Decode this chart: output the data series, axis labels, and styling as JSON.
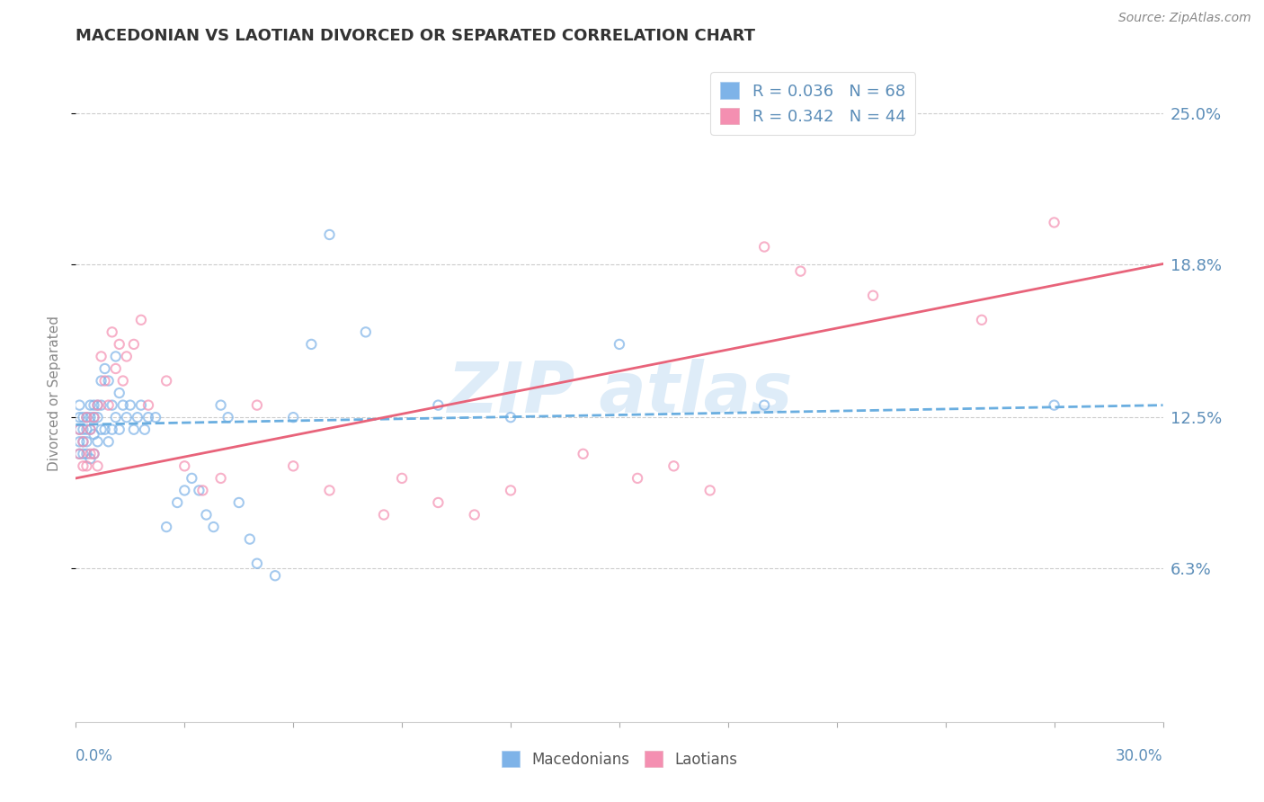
{
  "title": "MACEDONIAN VS LAOTIAN DIVORCED OR SEPARATED CORRELATION CHART",
  "source": "Source: ZipAtlas.com",
  "ylabel": "Divorced or Separated",
  "yticks": [
    0.063,
    0.125,
    0.188,
    0.25
  ],
  "ytick_labels": [
    "6.3%",
    "12.5%",
    "18.8%",
    "25.0%"
  ],
  "xmin": 0.0,
  "xmax": 0.3,
  "ymin": 0.0,
  "ymax": 0.27,
  "macedonian_R": 0.036,
  "macedonian_N": 68,
  "laotian_R": 0.342,
  "laotian_N": 44,
  "macedonian_color": "#7EB3E8",
  "laotian_color": "#F48FB1",
  "macedonian_trend_color": "#6AAEE0",
  "laotian_trend_color": "#E8637A",
  "watermark_text": "ZIP atlas",
  "macedonian_x": [
    0.001,
    0.001,
    0.001,
    0.001,
    0.001,
    0.002,
    0.002,
    0.002,
    0.002,
    0.003,
    0.003,
    0.003,
    0.003,
    0.004,
    0.004,
    0.004,
    0.004,
    0.005,
    0.005,
    0.005,
    0.005,
    0.006,
    0.006,
    0.006,
    0.007,
    0.007,
    0.007,
    0.008,
    0.008,
    0.009,
    0.009,
    0.01,
    0.01,
    0.011,
    0.011,
    0.012,
    0.012,
    0.013,
    0.014,
    0.015,
    0.016,
    0.017,
    0.018,
    0.019,
    0.02,
    0.022,
    0.025,
    0.028,
    0.03,
    0.032,
    0.034,
    0.036,
    0.038,
    0.04,
    0.042,
    0.045,
    0.048,
    0.05,
    0.055,
    0.06,
    0.065,
    0.07,
    0.08,
    0.1,
    0.12,
    0.15,
    0.19,
    0.27
  ],
  "macedonian_y": [
    0.13,
    0.125,
    0.12,
    0.115,
    0.11,
    0.125,
    0.12,
    0.115,
    0.11,
    0.125,
    0.12,
    0.115,
    0.11,
    0.13,
    0.125,
    0.12,
    0.108,
    0.13,
    0.125,
    0.118,
    0.11,
    0.13,
    0.125,
    0.115,
    0.14,
    0.13,
    0.12,
    0.145,
    0.12,
    0.14,
    0.115,
    0.13,
    0.12,
    0.15,
    0.125,
    0.135,
    0.12,
    0.13,
    0.125,
    0.13,
    0.12,
    0.125,
    0.13,
    0.12,
    0.125,
    0.125,
    0.08,
    0.09,
    0.095,
    0.1,
    0.095,
    0.085,
    0.08,
    0.13,
    0.125,
    0.09,
    0.075,
    0.065,
    0.06,
    0.125,
    0.155,
    0.2,
    0.16,
    0.13,
    0.125,
    0.155,
    0.13,
    0.13
  ],
  "laotian_x": [
    0.001,
    0.001,
    0.002,
    0.002,
    0.003,
    0.003,
    0.004,
    0.004,
    0.005,
    0.005,
    0.006,
    0.006,
    0.007,
    0.008,
    0.009,
    0.01,
    0.011,
    0.012,
    0.013,
    0.014,
    0.016,
    0.018,
    0.02,
    0.025,
    0.03,
    0.035,
    0.04,
    0.05,
    0.06,
    0.07,
    0.085,
    0.09,
    0.1,
    0.11,
    0.12,
    0.14,
    0.155,
    0.165,
    0.175,
    0.19,
    0.2,
    0.22,
    0.25,
    0.27
  ],
  "laotian_y": [
    0.12,
    0.11,
    0.115,
    0.105,
    0.125,
    0.105,
    0.12,
    0.11,
    0.125,
    0.11,
    0.13,
    0.105,
    0.15,
    0.14,
    0.13,
    0.16,
    0.145,
    0.155,
    0.14,
    0.15,
    0.155,
    0.165,
    0.13,
    0.14,
    0.105,
    0.095,
    0.1,
    0.13,
    0.105,
    0.095,
    0.085,
    0.1,
    0.09,
    0.085,
    0.095,
    0.11,
    0.1,
    0.105,
    0.095,
    0.195,
    0.185,
    0.175,
    0.165,
    0.205
  ]
}
